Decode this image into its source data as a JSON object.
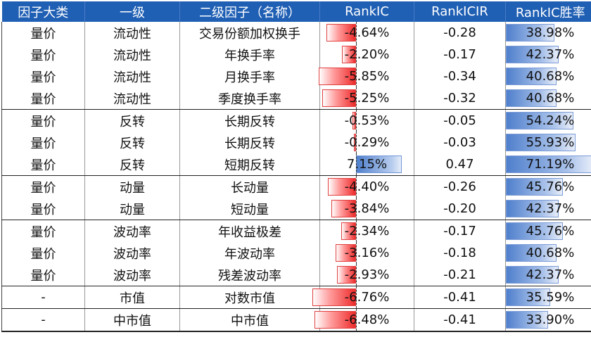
{
  "headers": [
    "因子大类",
    "一级",
    "二级因子（名称）",
    "RankIC",
    "RankICIR",
    "RankIC胜率"
  ],
  "rows": [
    {
      "cat": "量价",
      "l1": "流动性",
      "name": "交易份额加权换手",
      "ic": "-4.64%",
      "ic_value": -4.64,
      "icir": "-0.28",
      "win": "38.98%",
      "win_value": 38.98
    },
    {
      "cat": "量价",
      "l1": "流动性",
      "name": "年换手率",
      "ic": "-2.20%",
      "ic_value": -2.2,
      "icir": "-0.17",
      "win": "42.37%",
      "win_value": 42.37
    },
    {
      "cat": "量价",
      "l1": "流动性",
      "name": "月换手率",
      "ic": "-5.85%",
      "ic_value": -5.85,
      "icir": "-0.34",
      "win": "40.68%",
      "win_value": 40.68
    },
    {
      "cat": "量价",
      "l1": "流动性",
      "name": "季度换手率",
      "ic": "-5.25%",
      "ic_value": -5.25,
      "icir": "-0.32",
      "win": "40.68%",
      "win_value": 40.68
    },
    {
      "cat": "量价",
      "l1": "反转",
      "name": "长期反转",
      "ic": "-0.53%",
      "ic_value": -0.53,
      "icir": "-0.05",
      "win": "54.24%",
      "win_value": 54.24
    },
    {
      "cat": "量价",
      "l1": "反转",
      "name": "长期反转",
      "ic": "-0.29%",
      "ic_value": -0.29,
      "icir": "-0.03",
      "win": "55.93%",
      "win_value": 55.93
    },
    {
      "cat": "量价",
      "l1": "反转",
      "name": "短期反转",
      "ic": "7.15%",
      "ic_value": 7.15,
      "icir": "0.47",
      "win": "71.19%",
      "win_value": 71.19
    },
    {
      "cat": "量价",
      "l1": "动量",
      "name": "长动量",
      "ic": "-4.40%",
      "ic_value": -4.4,
      "icir": "-0.26",
      "win": "45.76%",
      "win_value": 45.76
    },
    {
      "cat": "量价",
      "l1": "动量",
      "name": "短动量",
      "ic": "-3.84%",
      "ic_value": -3.84,
      "icir": "-0.20",
      "win": "42.37%",
      "win_value": 42.37
    },
    {
      "cat": "量价",
      "l1": "波动率",
      "name": "年收益极差",
      "ic": "-2.34%",
      "ic_value": -2.34,
      "icir": "-0.17",
      "win": "45.76%",
      "win_value": 45.76
    },
    {
      "cat": "量价",
      "l1": "波动率",
      "name": "年波动率",
      "ic": "-3.16%",
      "ic_value": -3.16,
      "icir": "-0.18",
      "win": "40.68%",
      "win_value": 40.68
    },
    {
      "cat": "量价",
      "l1": "波动率",
      "name": "残差波动率",
      "ic": "-2.93%",
      "ic_value": -2.93,
      "icir": "-0.21",
      "win": "42.37%",
      "win_value": 42.37
    },
    {
      "cat": "-",
      "l1": "市值",
      "name": "对数市值",
      "ic": "-6.76%",
      "ic_value": -6.76,
      "icir": "-0.41",
      "win": "35.59%",
      "win_value": 35.59
    },
    {
      "cat": "-",
      "l1": "中市值",
      "name": "中市值",
      "ic": "-6.48%",
      "ic_value": -6.48,
      "icir": "-0.41",
      "win": "33.90%",
      "win_value": 33.9
    }
  ],
  "colors": {
    "header_bg": "#1f5fb4",
    "header_text": "#ffffff",
    "neg_bar": "#ee2b2b",
    "pos_bar": "#4f7fcc"
  }
}
